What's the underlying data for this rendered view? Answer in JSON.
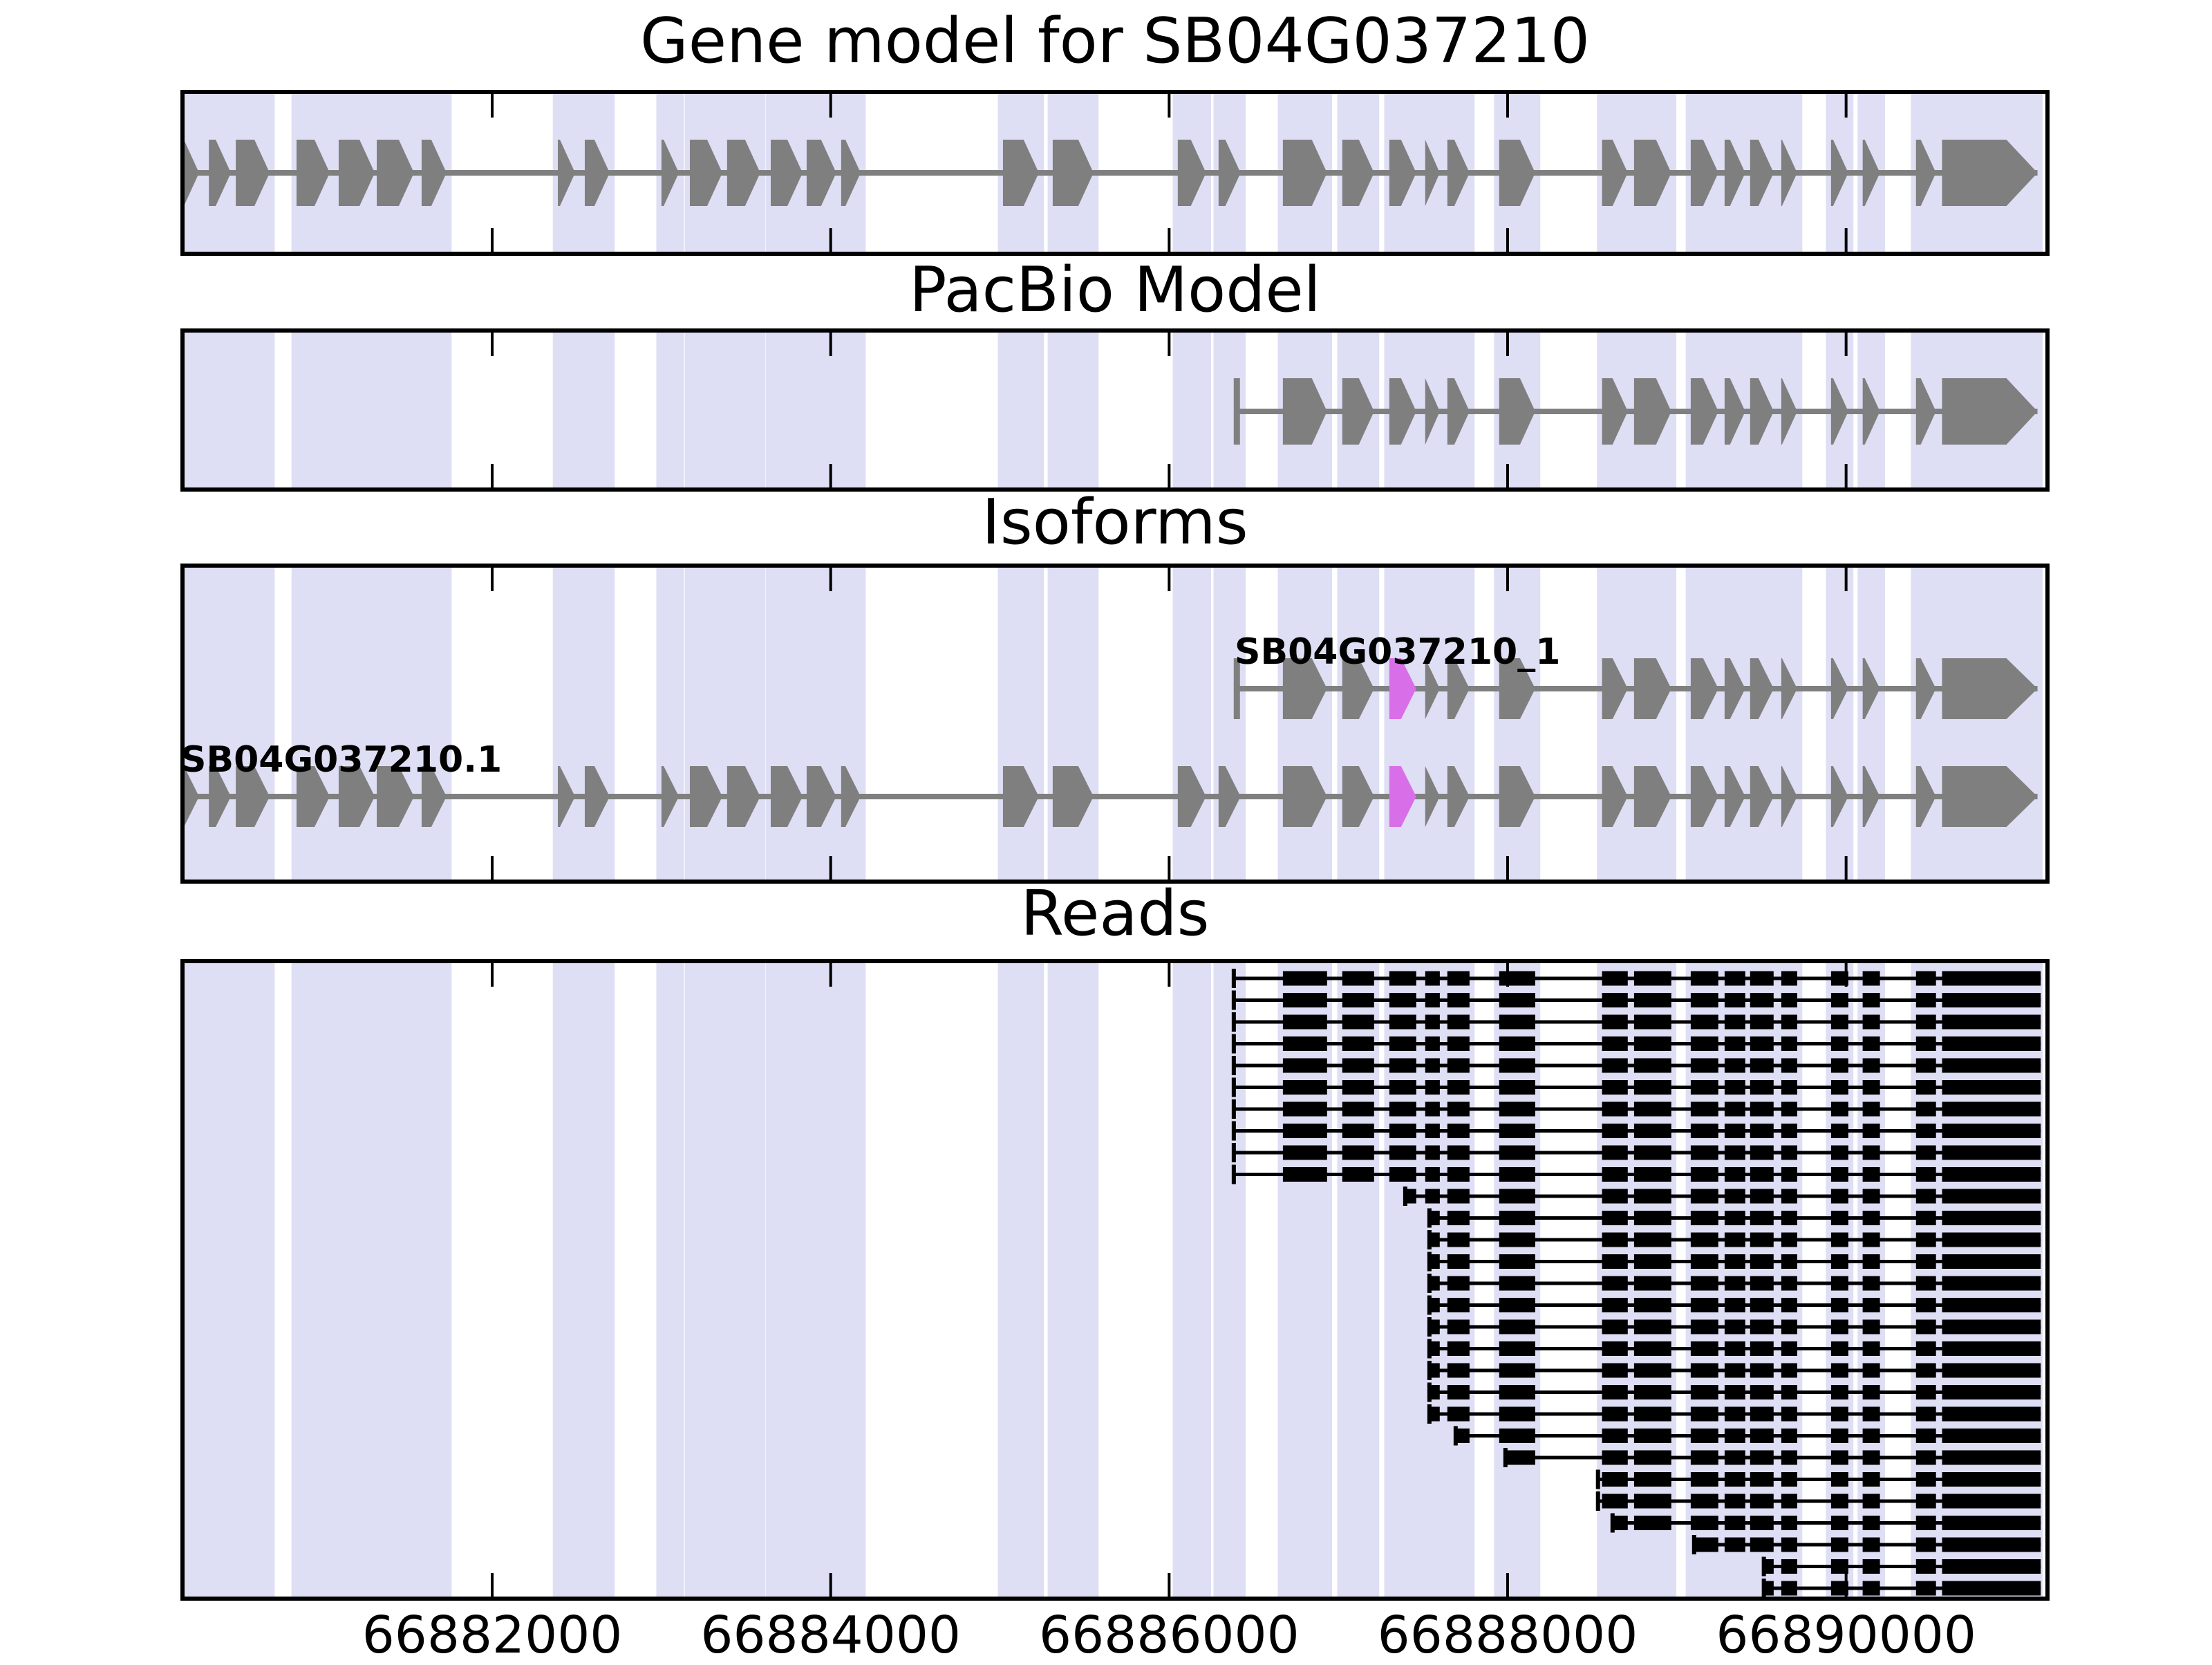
{
  "figure": {
    "panels": [
      {
        "id": "gene_model",
        "title": "Gene model for SB04G037210"
      },
      {
        "id": "pacbio",
        "title": "PacBio Model"
      },
      {
        "id": "isoforms",
        "title": "Isoforms"
      },
      {
        "id": "reads",
        "title": "Reads"
      }
    ]
  },
  "chart_data": {
    "type": "genomic-feature-tracks",
    "title": "Gene model for SB04G037210",
    "axis": {
      "xmin": 66880170,
      "xmax": 66891190,
      "tick_positions": [
        66882000,
        66884000,
        66886000,
        66888000,
        66890000
      ],
      "tick_labels": [
        "66882000",
        "66884000",
        "66886000",
        "66888000",
        "66890000"
      ]
    },
    "gene_model": {
      "name": "SB04G037210",
      "strand": "+",
      "exons": [
        [
          66880170,
          66880268
        ],
        [
          66880326,
          66880456
        ],
        [
          66880485,
          66880685
        ],
        [
          66880844,
          66881040
        ],
        [
          66881093,
          66881306
        ],
        [
          66881318,
          66881538
        ],
        [
          66881583,
          66881730
        ],
        [
          66882388,
          66882490
        ],
        [
          66882547,
          66882694
        ],
        [
          66883000,
          66883103
        ],
        [
          66883168,
          66883360
        ],
        [
          66883388,
          66883584
        ],
        [
          66883646,
          66883834
        ],
        [
          66883858,
          66884033
        ],
        [
          66884062,
          66884177
        ],
        [
          66885018,
          66885230
        ],
        [
          66885312,
          66885553
        ],
        [
          66886051,
          66886218
        ],
        [
          66886292,
          66886422
        ],
        [
          66886672,
          66886933
        ],
        [
          66887023,
          66887211
        ],
        [
          66887301,
          66887460
        ],
        [
          66887513,
          66887599
        ],
        [
          66887644,
          66887775
        ],
        [
          66887950,
          66888163
        ],
        [
          66888558,
          66888710
        ],
        [
          66888747,
          66888967
        ],
        [
          66889082,
          66889245
        ],
        [
          66889282,
          66889404
        ],
        [
          66889433,
          66889572
        ],
        [
          66889617,
          66889711
        ],
        [
          66889911,
          66890013
        ],
        [
          66890098,
          66890200
        ],
        [
          66890413,
          66890531
        ],
        [
          66890567,
          66891131
        ]
      ]
    },
    "pacbio_model": {
      "start": 66886400,
      "first_exon_index": 19
    },
    "isoforms": [
      {
        "name": "SB04G037210_1",
        "start": 66886400,
        "first_exon_index": 19,
        "highlight_exon_index": 21
      },
      {
        "name": "SB04G037210.1",
        "start": null,
        "first_exon_index": 0,
        "highlight_exon_index": 21
      }
    ],
    "reads": {
      "first_exon_index": 19,
      "final_block_end": 66891150,
      "starts": [
        66886382,
        66886382,
        66886382,
        66886382,
        66886382,
        66886382,
        66886382,
        66886382,
        66886382,
        66886382,
        66887395,
        66887538,
        66887538,
        66887538,
        66887538,
        66887538,
        66887538,
        66887538,
        66887538,
        66887538,
        66887538,
        66887693,
        66887987,
        66888534,
        66888534,
        66888620,
        66889102,
        66889514,
        66889514
      ]
    },
    "colors": {
      "exon": "#7F7F7F",
      "intron": "#7F7F7F",
      "highlight": "#D96FE8",
      "stripe": "#DEDEF4",
      "read": "#000000",
      "border": "#000000",
      "background": "#FFFFFF",
      "text": "#000000"
    }
  }
}
